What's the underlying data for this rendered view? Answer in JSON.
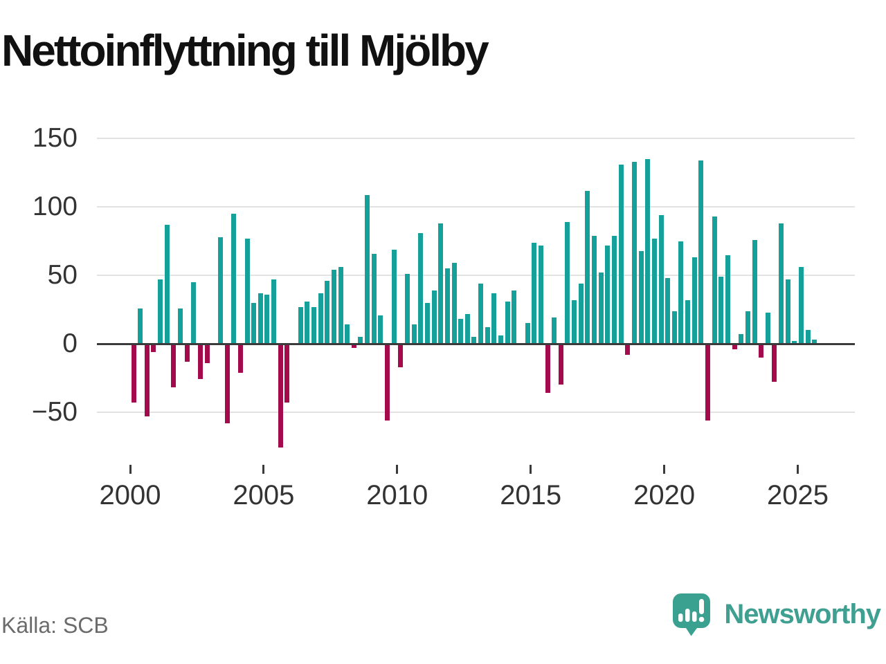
{
  "title": "Nettoinflyttning till Mjölby",
  "source": "Källa: SCB",
  "brand": {
    "name": "Newsworthy",
    "icon": "speech-bubble-bar-chart-icon",
    "icon_color": "#3aa191",
    "text_color": "#3fa092"
  },
  "colors": {
    "positive_bar": "#16a09a",
    "negative_bar": "#a40b4d",
    "gridline": "#e2e2e2",
    "zero_line": "#3b3b3b",
    "tick_text": "#333333",
    "title_text": "#111111",
    "source_text": "#6b6b6b"
  },
  "chart_data": {
    "type": "bar",
    "title": "Nettoinflyttning till Mjölby",
    "x_unit": "quarter",
    "start_quarter": "2000-Q1",
    "end_quarter": "2025-Q3",
    "x_tick_years": [
      2000,
      2005,
      2010,
      2015,
      2020,
      2025
    ],
    "y_ticks": [
      150,
      100,
      50,
      0,
      -50
    ],
    "ylim": [
      -80,
      155
    ],
    "grid": true,
    "legend": false,
    "values_note": "net migration per quarter, 2000Q1-2025Q3; positive teal, negative crimson",
    "values": [
      -43,
      26,
      -53,
      -6,
      47,
      87,
      -32,
      26,
      -13,
      45,
      -26,
      -14,
      0,
      78,
      -58,
      95,
      -21,
      77,
      30,
      37,
      36,
      47,
      -76,
      -43,
      0,
      27,
      31,
      27,
      37,
      46,
      54,
      56,
      14,
      -3,
      5,
      109,
      66,
      21,
      -56,
      69,
      -17,
      51,
      14,
      81,
      30,
      39,
      88,
      55,
      59,
      18,
      22,
      5,
      44,
      12,
      37,
      6,
      31,
      39,
      0,
      15,
      74,
      72,
      -36,
      19,
      -30,
      89,
      32,
      44,
      112,
      79,
      52,
      72,
      79,
      131,
      -8,
      133,
      68,
      135,
      77,
      94,
      48,
      24,
      75,
      32,
      63,
      134,
      -56,
      93,
      49,
      65,
      -4,
      7,
      24,
      76,
      -10,
      23,
      -28,
      88,
      47,
      2,
      56,
      10,
      3
    ]
  }
}
